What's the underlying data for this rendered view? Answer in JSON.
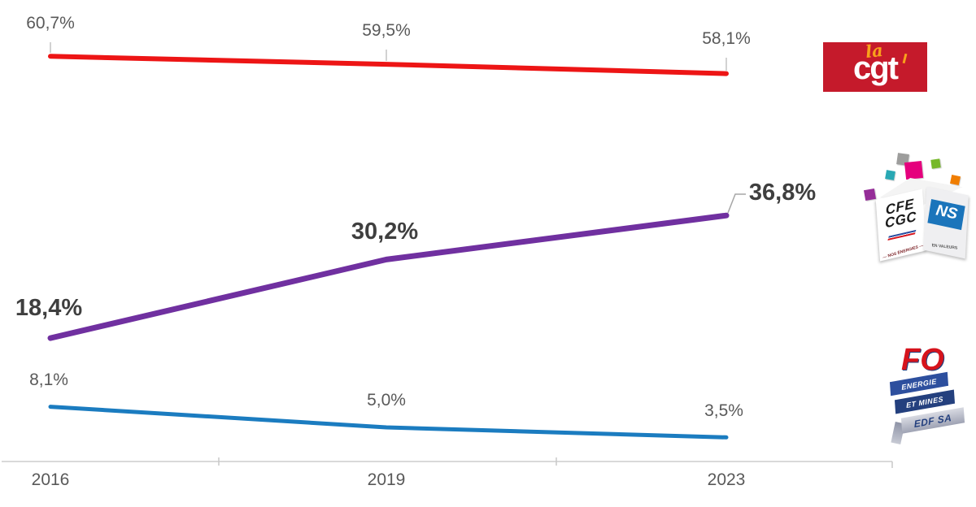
{
  "chart_data": {
    "type": "line",
    "title": "",
    "xlabel": "",
    "ylabel": "",
    "categories": [
      "2016",
      "2019",
      "2023"
    ],
    "series": [
      {
        "name": "CGT",
        "values": [
          60.7,
          59.5,
          58.1
        ],
        "labels": [
          "60,7%",
          "59,5%",
          "58,1%"
        ],
        "color": "#ed1515",
        "emphasized": false
      },
      {
        "name": "CFE-CGC",
        "values": [
          18.4,
          30.2,
          36.8
        ],
        "labels": [
          "18,4%",
          "30,2%",
          "36,8%"
        ],
        "color": "#7030a0",
        "emphasized": true
      },
      {
        "name": "FO",
        "values": [
          8.1,
          5.0,
          3.5
        ],
        "labels": [
          "8,1%",
          "5,0%",
          "3,5%"
        ],
        "color": "#1b7cc0",
        "emphasized": false
      }
    ],
    "ylim": [
      0,
      70
    ],
    "grid": false,
    "legend_position": "right-logos",
    "axis_color": "#d9d9d9",
    "label_color": "#595959",
    "bold_label_color": "#3f3f3f"
  },
  "logos": {
    "cgt": {
      "script_word": "la",
      "word": "cgt",
      "bg": "#c51a2b",
      "accent": "#f9a11b"
    },
    "cfe_cgc": {
      "line1": "CFE",
      "line2": "CGC",
      "side_word": "NS",
      "caption_left": "— NOS ÉNERGIES —",
      "caption_right": "EN VALEURS"
    },
    "fo": {
      "word": "FO",
      "banner1": "ENERGIE",
      "banner2": "ET MINES",
      "banner3": "EDF SA"
    }
  }
}
